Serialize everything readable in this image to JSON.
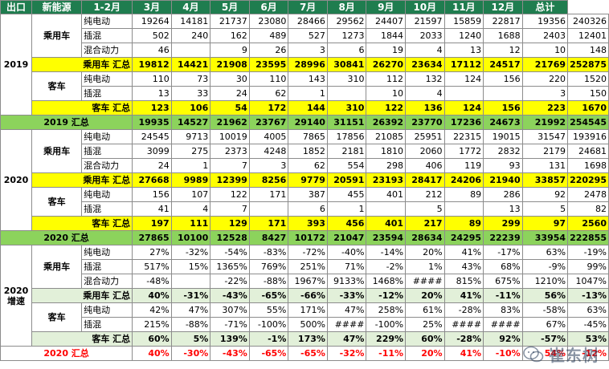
{
  "headers": [
    "出口",
    "新能源",
    "1-2月",
    "3月",
    "4月",
    "5月",
    "6月",
    "7月",
    "8月",
    "9月",
    "10月",
    "11月",
    "12月",
    "总计"
  ],
  "y2019": {
    "year": "2019",
    "passenger_label": "乘用车",
    "passenger_rows": [
      {
        "type": "纯电动",
        "values": [
          "19264",
          "14181",
          "21737",
          "23080",
          "28466",
          "29562",
          "24407",
          "21597",
          "15859",
          "22817",
          "19356",
          "240326"
        ]
      },
      {
        "type": "插混",
        "values": [
          "502",
          "240",
          "162",
          "489",
          "527",
          "1273",
          "1844",
          "2033",
          "1240",
          "1688",
          "2403",
          "12401"
        ]
      },
      {
        "type": "混合动力",
        "values": [
          "46",
          "",
          "9",
          "26",
          "3",
          "6",
          "19",
          "4",
          "13",
          "12",
          "10",
          "148"
        ]
      }
    ],
    "passenger_sum": {
      "label": "乘用车 汇总",
      "values": [
        "19812",
        "14421",
        "21908",
        "23595",
        "28996",
        "30841",
        "26270",
        "23634",
        "17112",
        "24517",
        "21769",
        "252875"
      ]
    },
    "bus_label": "客车",
    "bus_rows": [
      {
        "type": "纯电动",
        "values": [
          "110",
          "73",
          "30",
          "110",
          "143",
          "310",
          "112",
          "132",
          "124",
          "156",
          "220",
          "1520"
        ]
      },
      {
        "type": "插混",
        "values": [
          "13",
          "33",
          "24",
          "62",
          "1",
          "",
          "10",
          "4",
          "",
          "",
          "3",
          "150"
        ]
      }
    ],
    "bus_sum": {
      "label": "客车 汇总",
      "values": [
        "123",
        "106",
        "54",
        "172",
        "144",
        "310",
        "122",
        "136",
        "124",
        "156",
        "223",
        "1670"
      ]
    },
    "total": {
      "label": "2019 汇总",
      "values": [
        "19935",
        "14527",
        "21962",
        "23767",
        "29140",
        "31151",
        "26392",
        "23770",
        "17236",
        "24673",
        "21992",
        "254545"
      ]
    }
  },
  "y2020": {
    "year": "2020",
    "passenger_label": "乘用车",
    "passenger_rows": [
      {
        "type": "纯电动",
        "values": [
          "24545",
          "9713",
          "10019",
          "4005",
          "7865",
          "17856",
          "21085",
          "25951",
          "22315",
          "19015",
          "31547",
          "193916"
        ]
      },
      {
        "type": "插混",
        "values": [
          "3099",
          "275",
          "2373",
          "4248",
          "1852",
          "2181",
          "1810",
          "2060",
          "1772",
          "2832",
          "2179",
          "24681"
        ]
      },
      {
        "type": "混合动力",
        "values": [
          "24",
          "1",
          "7",
          "3",
          "62",
          "554",
          "298",
          "406",
          "119",
          "93",
          "131",
          "1698"
        ]
      }
    ],
    "passenger_sum": {
      "label": "乘用车 汇总",
      "values": [
        "27668",
        "9989",
        "12399",
        "8256",
        "9779",
        "20591",
        "23193",
        "28417",
        "24206",
        "21940",
        "33857",
        "220295"
      ]
    },
    "bus_label": "客车",
    "bus_rows": [
      {
        "type": "纯电动",
        "values": [
          "156",
          "107",
          "122",
          "171",
          "387",
          "455",
          "401",
          "212",
          "89",
          "286",
          "92",
          "2478"
        ]
      },
      {
        "type": "插混",
        "values": [
          "41",
          "4",
          "7",
          "",
          "6",
          "1",
          "",
          "5",
          "",
          "13",
          "5",
          "82"
        ]
      }
    ],
    "bus_sum": {
      "label": "客车 汇总",
      "values": [
        "197",
        "111",
        "129",
        "171",
        "393",
        "456",
        "401",
        "217",
        "89",
        "299",
        "97",
        "2560"
      ]
    },
    "total": {
      "label": "2020 汇总",
      "values": [
        "27865",
        "10100",
        "12528",
        "8427",
        "10172",
        "21047",
        "23594",
        "28634",
        "24295",
        "22239",
        "33954",
        "222855"
      ]
    }
  },
  "growth": {
    "year": "2020\n增速",
    "passenger_label": "乘用车",
    "passenger_rows": [
      {
        "type": "纯电动",
        "values": [
          "27%",
          "-32%",
          "-54%",
          "-83%",
          "-72%",
          "-40%",
          "-14%",
          "20%",
          "41%",
          "-17%",
          "63%",
          "-19%"
        ]
      },
      {
        "type": "插混",
        "values": [
          "517%",
          "15%",
          "1365%",
          "769%",
          "251%",
          "71%",
          "-2%",
          "1%",
          "43%",
          "68%",
          "-9%",
          "99%"
        ]
      },
      {
        "type": "混合动力",
        "values": [
          "-48%",
          "",
          "-22%",
          "-88%",
          "1967%",
          "9133%",
          "1468%",
          "####",
          "815%",
          "675%",
          "1210%",
          "1047%"
        ]
      }
    ],
    "passenger_sum": {
      "label": "乘用车 汇总",
      "values": [
        "40%",
        "-31%",
        "-43%",
        "-65%",
        "-66%",
        "-33%",
        "-12%",
        "20%",
        "41%",
        "-11%",
        "56%",
        "-13%"
      ]
    },
    "bus_label": "客车",
    "bus_rows": [
      {
        "type": "纯电动",
        "values": [
          "42%",
          "47%",
          "307%",
          "55%",
          "171%",
          "47%",
          "258%",
          "61%",
          "-28%",
          "83%",
          "-58%",
          "63%"
        ]
      },
      {
        "type": "插混",
        "values": [
          "215%",
          "-88%",
          "-71%",
          "-100%",
          "500%",
          "####",
          "-100%",
          "25%",
          "####",
          "####",
          "67%",
          "-45%"
        ]
      }
    ],
    "bus_sum": {
      "label": "客车 汇总",
      "values": [
        "60%",
        "5%",
        "139%",
        "-1%",
        "173%",
        "47%",
        "229%",
        "60%",
        "-28%",
        "92%",
        "-57%",
        "53%"
      ]
    },
    "total": {
      "label": "2020 汇总",
      "values": [
        "40%",
        "-30%",
        "-43%",
        "-65%",
        "-65%",
        "-32%",
        "-11%",
        "20%",
        "41%",
        "-10%",
        "54%",
        "-12%"
      ]
    }
  },
  "watermark": {
    "text": "崔东树",
    "icon": "wechat-icon"
  }
}
